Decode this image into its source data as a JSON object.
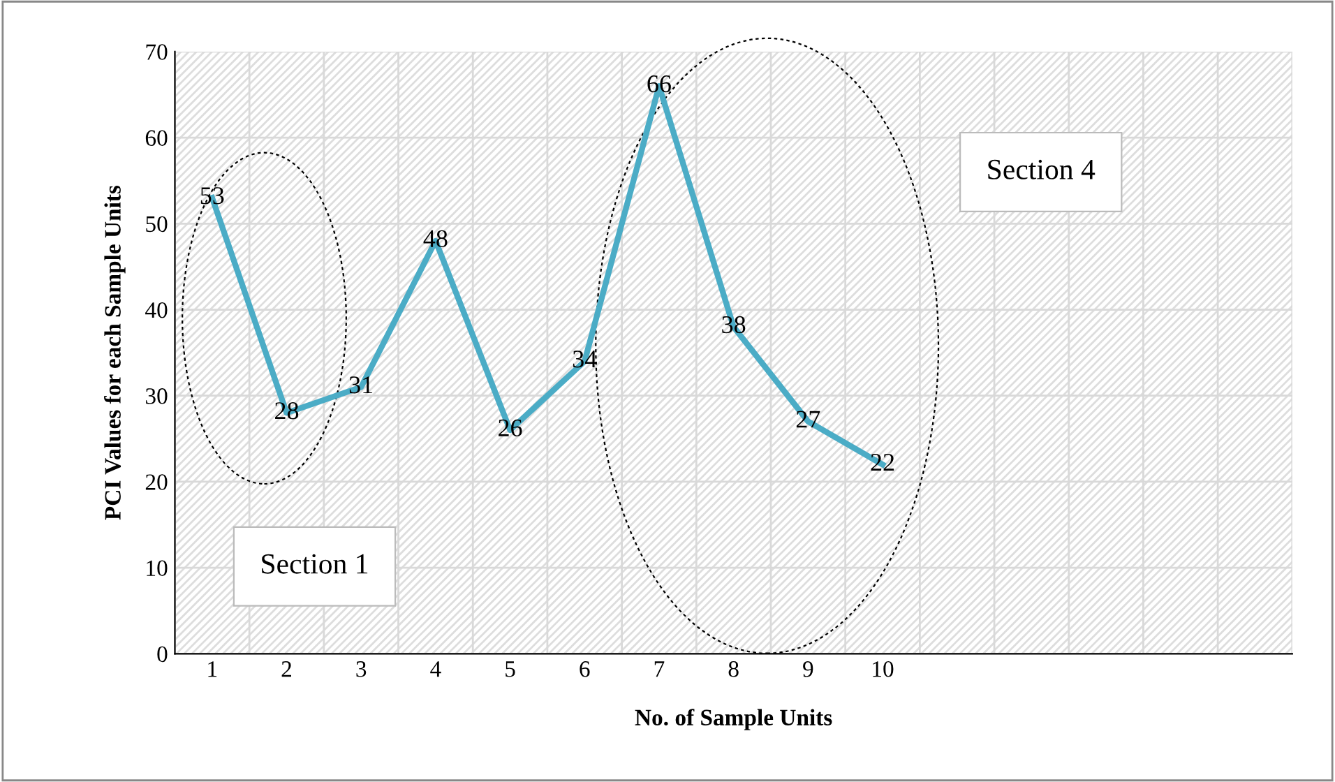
{
  "chart_data": {
    "type": "line",
    "xlabel": "No. of Sample Units",
    "ylabel": "PCI Values for each Sample Units",
    "categories": [
      "1",
      "2",
      "3",
      "4",
      "5",
      "6",
      "7",
      "8",
      "9",
      "10",
      null,
      null,
      null,
      null,
      null
    ],
    "series": [
      {
        "color": "#4bacc6",
        "values": [
          53,
          28,
          31,
          48,
          26,
          34,
          66,
          38,
          27,
          22,
          null,
          null,
          null,
          null,
          null
        ]
      }
    ],
    "ylim": [
      0,
      70
    ],
    "yticks": [
      0,
      10,
      20,
      30,
      40,
      50,
      60,
      70
    ],
    "grid": true,
    "data_labels": true,
    "marker": "none",
    "line_style": "solid",
    "annotations": [
      "Section 1",
      "Section 4"
    ]
  }
}
